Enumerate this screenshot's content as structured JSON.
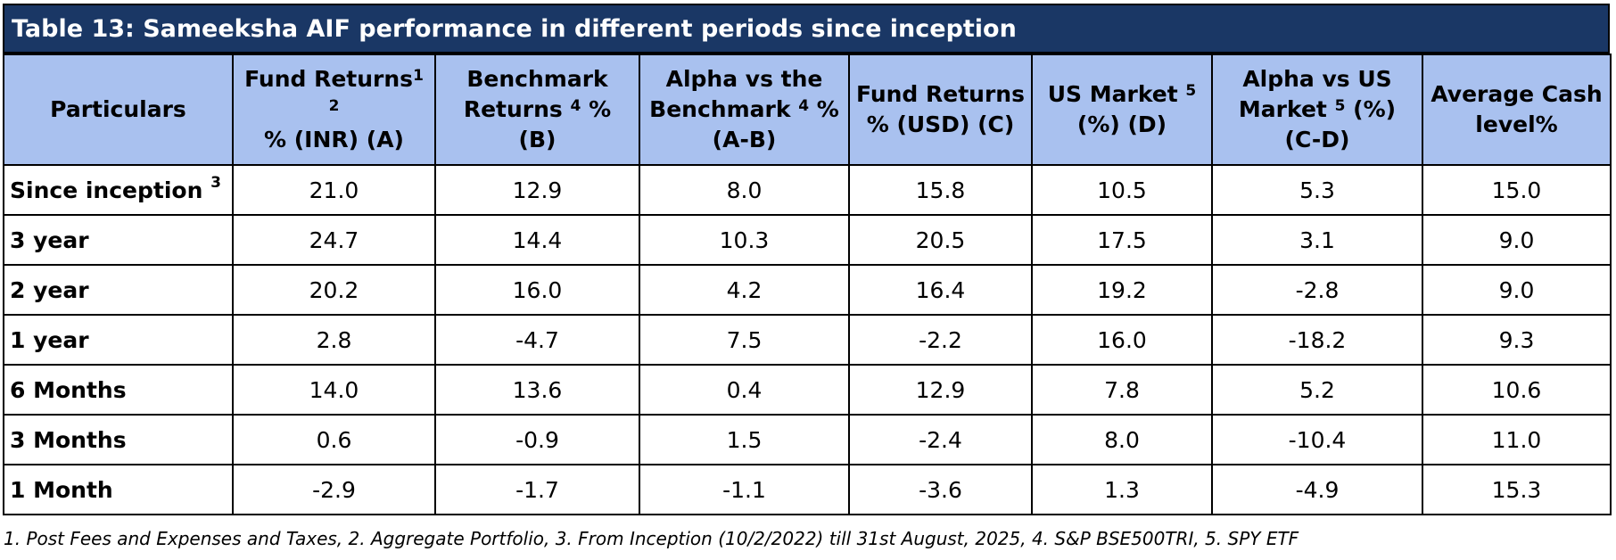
{
  "title": "Table 13: Sameeksha AIF performance in different periods since inception",
  "headers": {
    "particulars": "Particulars",
    "fund_inr_a": "Fund Returns",
    "fund_inr_sup": "1 2",
    "fund_inr_b": "% (INR) (A)",
    "bench_a": "Benchmark",
    "bench_b": "Returns",
    "bench_sup": "4",
    "bench_c": "% (B)",
    "alpha_a": "Alpha vs the",
    "alpha_b": "Benchmark",
    "alpha_sup": "4",
    "alpha_c": "%",
    "alpha_d": "(A-B)",
    "fund_usd_a": "Fund Returns",
    "fund_usd_b": "% (USD) (C)",
    "us_a": "US Market",
    "us_sup": "5",
    "us_b": "(%) (D)",
    "alpha_us_a": "Alpha vs US",
    "alpha_us_b": "Market",
    "alpha_us_sup": "5",
    "alpha_us_c": "(%)",
    "alpha_us_d": "(C-D)",
    "cash_a": "Average Cash",
    "cash_b": "level%"
  },
  "rows": [
    {
      "label": "Since inception",
      "sup": "3",
      "values": [
        "21.0",
        "12.9",
        "8.0",
        "15.8",
        "10.5",
        "5.3",
        "15.0"
      ]
    },
    {
      "label": "3 year",
      "sup": "",
      "values": [
        "24.7",
        "14.4",
        "10.3",
        "20.5",
        "17.5",
        "3.1",
        "9.0"
      ]
    },
    {
      "label": "2 year",
      "sup": "",
      "values": [
        "20.2",
        "16.0",
        "4.2",
        "16.4",
        "19.2",
        "-2.8",
        "9.0"
      ]
    },
    {
      "label": "1 year",
      "sup": "",
      "values": [
        "2.8",
        "-4.7",
        "7.5",
        "-2.2",
        "16.0",
        "-18.2",
        "9.3"
      ]
    },
    {
      "label": "6 Months",
      "sup": "",
      "values": [
        "14.0",
        "13.6",
        "0.4",
        "12.9",
        "7.8",
        "5.2",
        "10.6"
      ]
    },
    {
      "label": "3 Months",
      "sup": "",
      "values": [
        "0.6",
        "-0.9",
        "1.5",
        "-2.4",
        "8.0",
        "-10.4",
        "11.0"
      ]
    },
    {
      "label": "1 Month",
      "sup": "",
      "values": [
        "-2.9",
        "-1.7",
        "-1.1",
        "-3.6",
        "1.3",
        "-4.9",
        "15.3"
      ]
    }
  ],
  "footnote": "1. Post Fees and Expenses and Taxes, 2. Aggregate Portfolio, 3. From Inception (10/2/2022) till 31st August, 2025,  4. S&P BSE500TRI,  5. SPY ETF",
  "colors": {
    "title_bg": "#1a3765",
    "header_bg": "#a9c1ef"
  }
}
